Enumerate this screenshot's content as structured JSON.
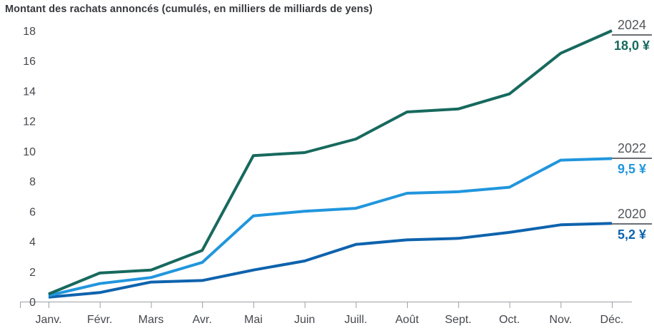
{
  "title": "Montant des rachats annoncés (cumulés, en milliers de milliards de yens)",
  "chart_data": {
    "type": "line",
    "title": "Montant des rachats annoncés (cumulés, en milliers de milliards de yens)",
    "xlabel": "",
    "ylabel": "",
    "x_categories": [
      "Janv.",
      "Févr.",
      "Mars",
      "Avr.",
      "Mai",
      "Juin",
      "Juill.",
      "Août",
      "Sept.",
      "Oct.",
      "Nov.",
      "Déc."
    ],
    "y_ticks": [
      0,
      2,
      4,
      6,
      8,
      10,
      12,
      14,
      16,
      18
    ],
    "ylim": [
      0,
      18
    ],
    "grid": false,
    "legend_position": "right-end-labels",
    "axis_color": "#9aa0a4",
    "tick_label_color": "#45484d",
    "year_label_color": "#54575b",
    "series": [
      {
        "name": "2024",
        "final_label": "18,0 ¥",
        "color": "#17695d",
        "values": [
          0.5,
          1.9,
          2.1,
          3.4,
          9.7,
          9.9,
          10.8,
          12.6,
          12.8,
          13.8,
          16.5,
          18.0
        ]
      },
      {
        "name": "2022",
        "final_label": "9,5 ¥",
        "color": "#2196dd",
        "values": [
          0.4,
          1.2,
          1.6,
          2.6,
          5.7,
          6.0,
          6.2,
          7.2,
          7.3,
          7.6,
          9.4,
          9.5
        ]
      },
      {
        "name": "2020",
        "final_label": "5,2 ¥",
        "color": "#0e63ad",
        "values": [
          0.3,
          0.6,
          1.3,
          1.4,
          2.1,
          2.7,
          3.8,
          4.1,
          4.2,
          4.6,
          5.1,
          5.2
        ]
      }
    ]
  }
}
